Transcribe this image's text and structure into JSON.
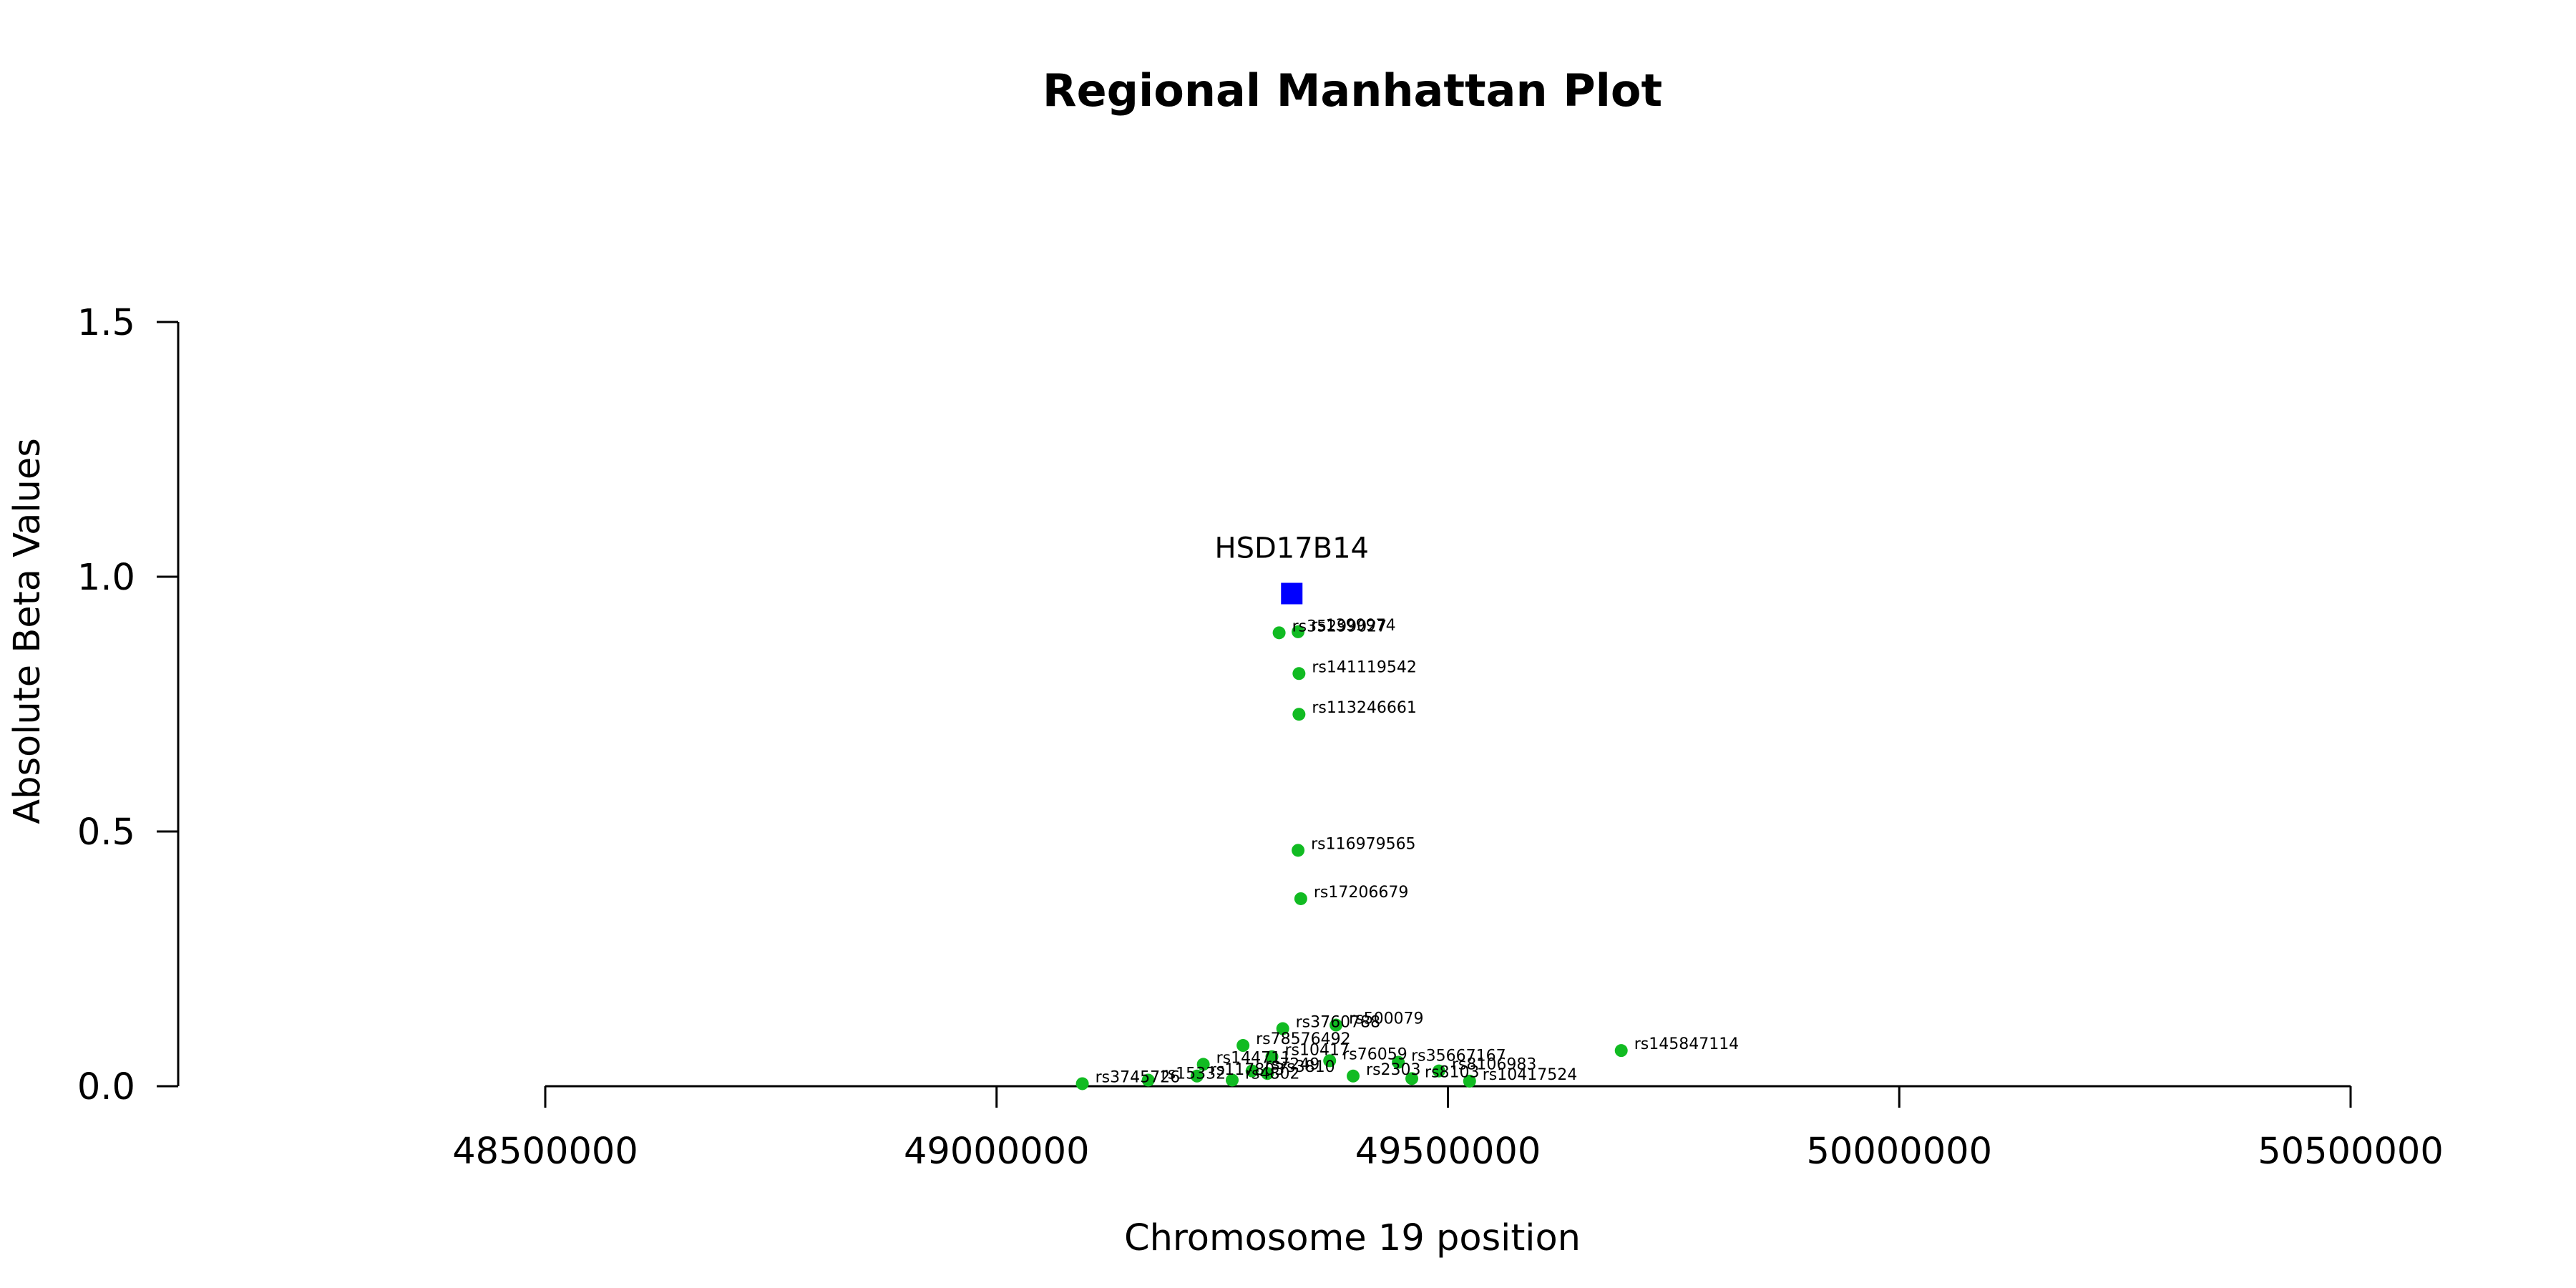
{
  "chart_data": {
    "type": "scatter",
    "title": "Regional Manhattan Plot",
    "xlabel": "Chromosome 19 position",
    "ylabel": "Absolute Beta Values",
    "xlim": [
      48500000,
      50500000
    ],
    "ylim": [
      0,
      1.5
    ],
    "x_ticks": [
      48500000,
      49000000,
      49500000,
      50000000,
      50500000
    ],
    "y_ticks": [
      0.0,
      0.5,
      1.0,
      1.5
    ],
    "x_tick_labels": [
      "48500000",
      "49000000",
      "49500000",
      "50000000",
      "50500000"
    ],
    "y_tick_labels": [
      "0.0",
      "0.5",
      "1.0",
      "1.5"
    ],
    "grid": false,
    "legend": "none",
    "colors": {
      "snp": "#11bb22",
      "gene": "#0000ff"
    },
    "gene": {
      "label": "HSD17B14",
      "x": 49327000,
      "y": 0.967
    },
    "snps": [
      {
        "label": "rs35299027",
        "x": 49313000,
        "y": 0.89
      },
      {
        "label": "rs1399974",
        "x": 49334000,
        "y": 0.892
      },
      {
        "label": "rs141119542",
        "x": 49335000,
        "y": 0.81
      },
      {
        "label": "rs113246661",
        "x": 49335000,
        "y": 0.73
      },
      {
        "label": "rs116979565",
        "x": 49334000,
        "y": 0.463
      },
      {
        "label": "rs17206679",
        "x": 49337000,
        "y": 0.368
      },
      {
        "label": "rs3760788",
        "x": 49317000,
        "y": 0.113
      },
      {
        "label": "rs500079",
        "x": 49376000,
        "y": 0.12
      },
      {
        "label": "rs145847114",
        "x": 49692000,
        "y": 0.07
      },
      {
        "label": "rs78576492",
        "x": 49273000,
        "y": 0.08
      },
      {
        "label": "rs144711",
        "x": 49229000,
        "y": 0.043
      },
      {
        "label": "rs10417",
        "x": 49305000,
        "y": 0.058
      },
      {
        "label": "rs76059",
        "x": 49369000,
        "y": 0.05
      },
      {
        "label": "rs35667167",
        "x": 49445000,
        "y": 0.047
      },
      {
        "label": "rs8106983",
        "x": 49490000,
        "y": 0.03
      },
      {
        "label": "rs10417524",
        "x": 49524000,
        "y": 0.01
      },
      {
        "label": "rs3745726",
        "x": 49095000,
        "y": 0.005
      },
      {
        "label": "rs15332",
        "x": 49168000,
        "y": 0.012
      },
      {
        "label": "rs117803",
        "x": 49222000,
        "y": 0.02
      },
      {
        "label": "rs4802",
        "x": 49261000,
        "y": 0.012
      },
      {
        "label": "rs7249",
        "x": 49283000,
        "y": 0.03
      },
      {
        "label": "rs3810",
        "x": 49300000,
        "y": 0.025
      },
      {
        "label": "rs2303",
        "x": 49395000,
        "y": 0.02
      },
      {
        "label": "rs8103",
        "x": 49460000,
        "y": 0.015
      }
    ]
  }
}
